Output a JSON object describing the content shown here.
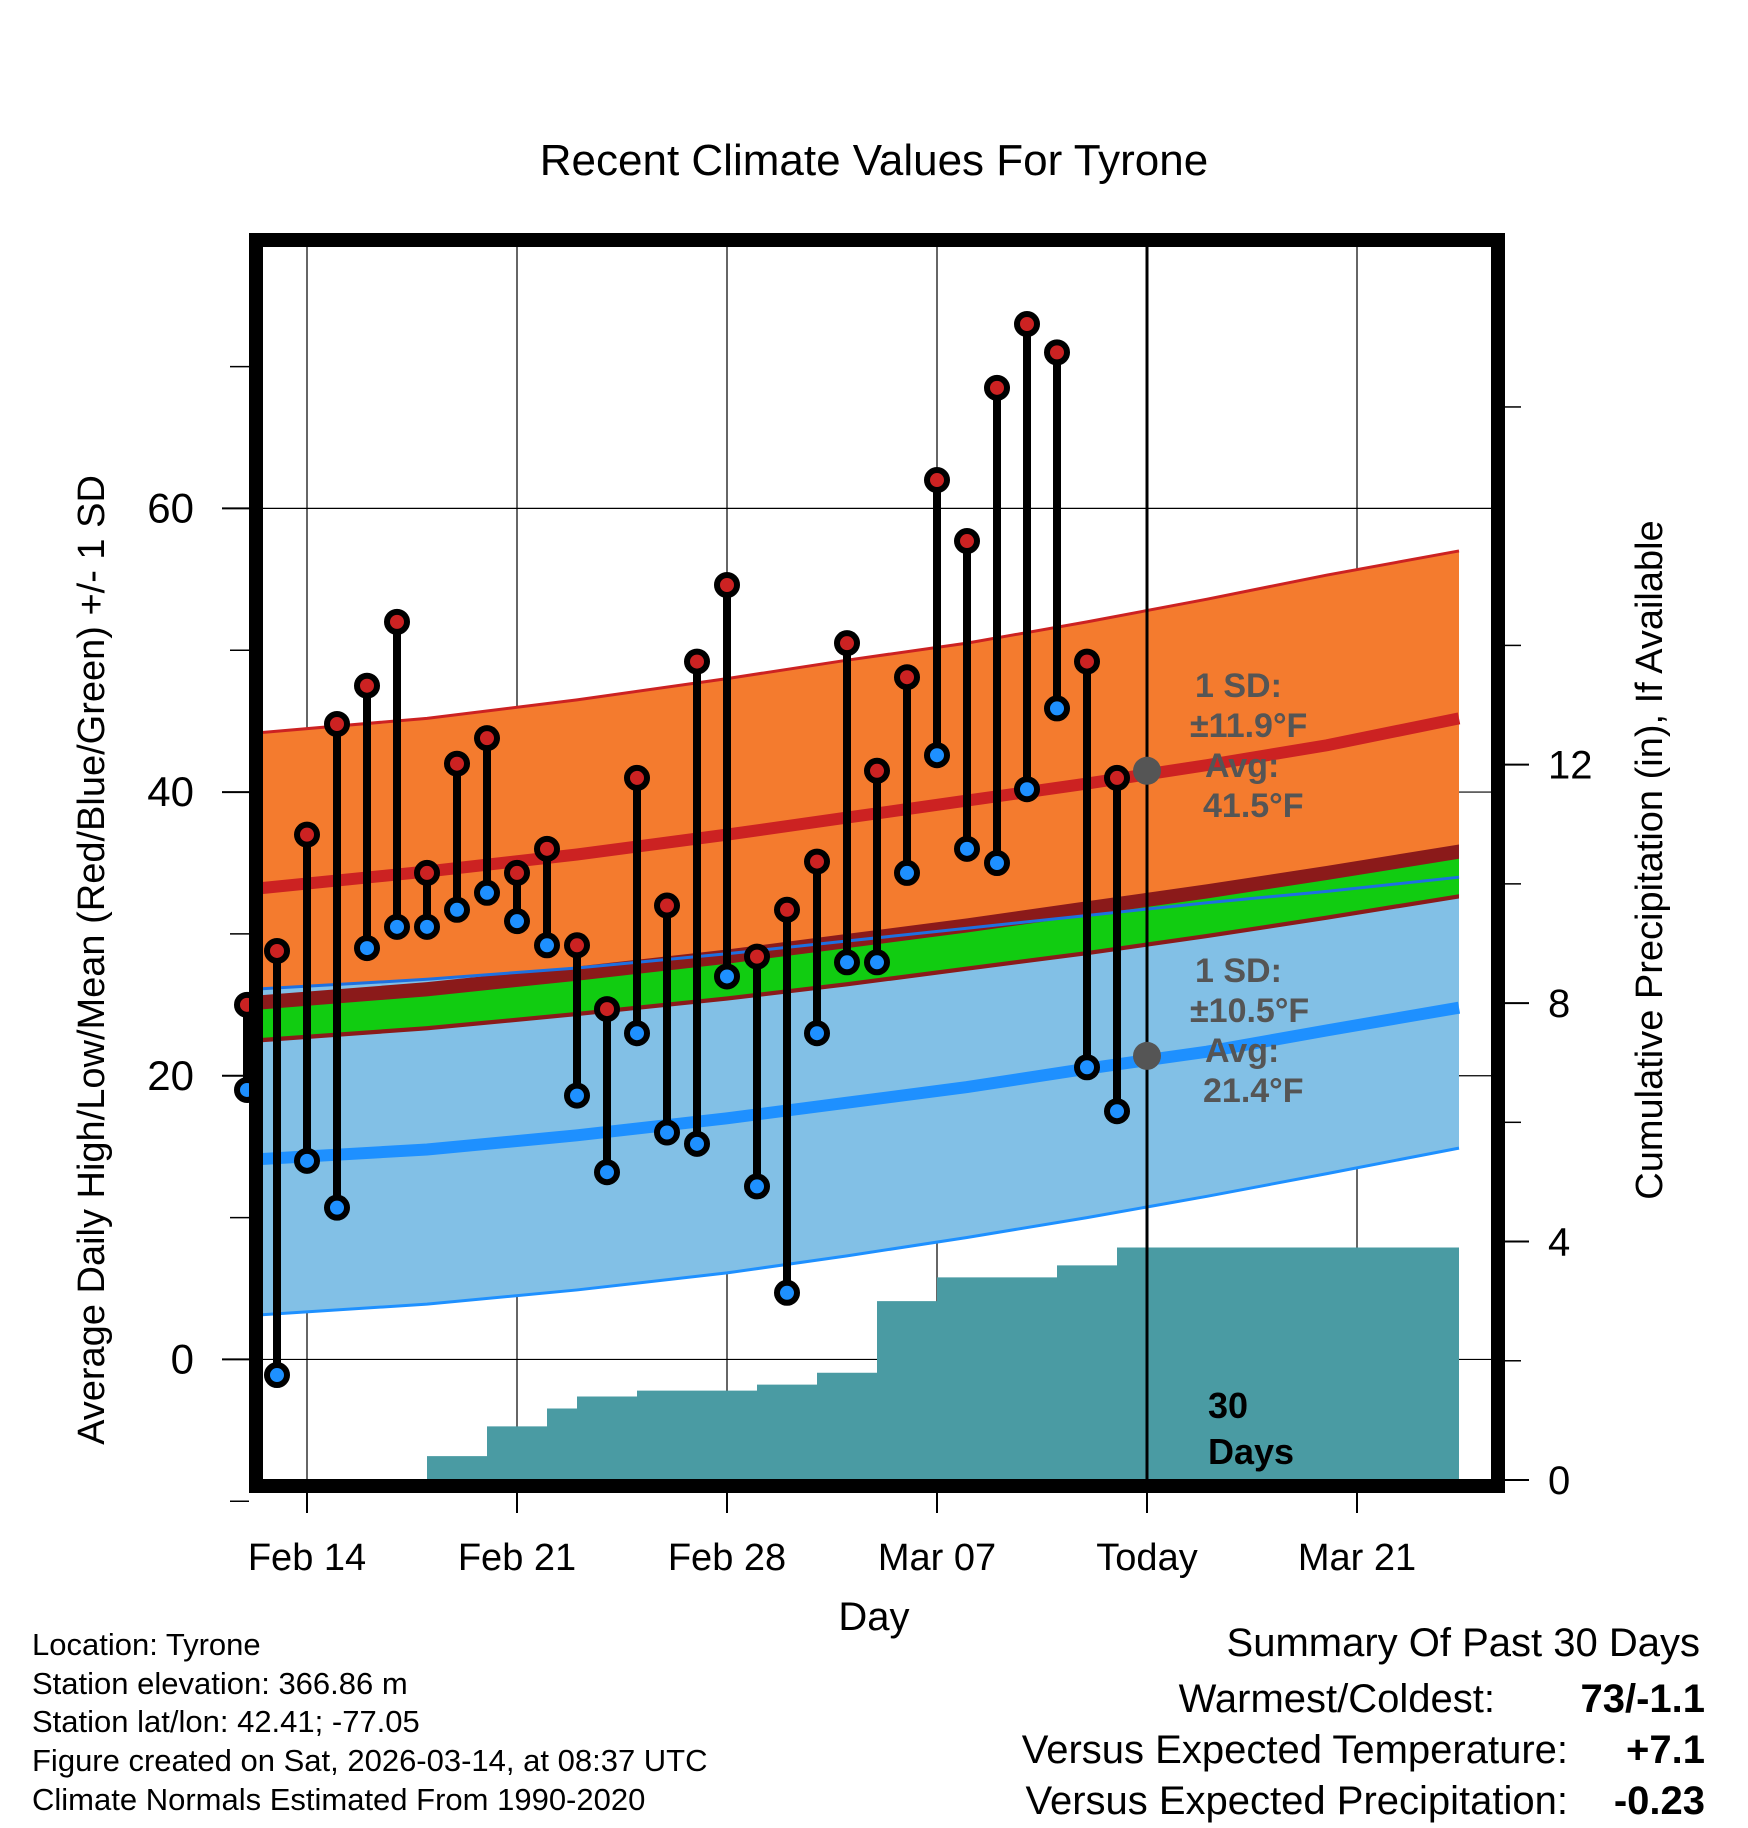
{
  "chart_data": {
    "type": "line",
    "title": "Recent Climate Values For Tyrone",
    "xlabel": "Day",
    "ylabel": "Average Daily High/Low/Mean (Red/Blue/Green) +/- 1 SD",
    "y2label": "Cumulative Precipitation (in), If Available",
    "ylim": [
      -8.5,
      78.5
    ],
    "y2lim": [
      0,
      20.7
    ],
    "xlim": [
      -1.5,
      39.5
    ],
    "y_ticks": [
      0,
      20,
      40,
      60
    ],
    "y2_ticks": [
      0,
      4,
      8,
      12
    ],
    "x_ticks": [
      {
        "day": 0,
        "label": "Feb 14"
      },
      {
        "day": 7,
        "label": "Feb 21"
      },
      {
        "day": 14,
        "label": "Feb 28"
      },
      {
        "day": 21,
        "label": "Mar 07"
      },
      {
        "day": 28,
        "label": "Today"
      },
      {
        "day": 35,
        "label": "Mar 21"
      }
    ],
    "today_day": 28,
    "today_marker_label": "30 Days",
    "normals": {
      "days": [
        -2.6,
        4,
        9,
        14,
        18,
        22,
        26,
        30,
        34,
        38.4
      ],
      "high_mean": [
        33.0,
        34.4,
        35.6,
        37.0,
        38.2,
        39.4,
        40.6,
        41.9,
        43.3,
        45.2
      ],
      "high_upper": [
        44.0,
        45.2,
        46.5,
        48.0,
        49.3,
        50.5,
        52.0,
        53.6,
        55.3,
        57.0
      ],
      "high_lower": [
        26.0,
        26.8,
        27.6,
        28.6,
        29.5,
        30.4,
        31.3,
        32.2,
        33.0,
        34.0
      ],
      "low_mean": [
        14.0,
        14.8,
        15.8,
        17.0,
        18.1,
        19.2,
        20.5,
        21.7,
        23.2,
        24.8
      ],
      "low_upper": [
        26.0,
        26.8,
        27.6,
        28.6,
        29.5,
        30.4,
        31.3,
        32.2,
        33.0,
        34.0
      ],
      "low_lower": [
        3.0,
        3.9,
        4.9,
        6.1,
        7.3,
        8.6,
        10.0,
        11.5,
        13.1,
        14.9
      ],
      "mean_upper": [
        24.5,
        25.6,
        26.7,
        27.9,
        29.0,
        30.1,
        31.3,
        32.5,
        33.8,
        35.3
      ],
      "mean_lower": [
        22.5,
        23.5,
        24.5,
        25.6,
        26.6,
        27.7,
        28.8,
        30.0,
        31.3,
        32.8
      ]
    },
    "series": [
      {
        "name": "Daily High",
        "color": "#cc2222",
        "days": [
          -2,
          -1,
          0,
          1,
          2,
          3,
          4,
          5,
          6,
          7,
          8,
          9,
          10,
          11,
          12,
          13,
          14,
          15,
          16,
          17,
          18,
          19,
          20,
          21,
          22,
          23,
          24,
          25,
          26,
          27
        ],
        "values": [
          25,
          28.8,
          37,
          44.8,
          47.5,
          52,
          34.3,
          42,
          43.8,
          34.3,
          36,
          29.2,
          24.7,
          41,
          32,
          49.2,
          54.6,
          28.4,
          31.7,
          35.1,
          50.5,
          41.5,
          48.1,
          62,
          57.7,
          68.5,
          73,
          71,
          49.2,
          41
        ]
      },
      {
        "name": "Daily Low",
        "color": "#1e90ff",
        "days": [
          -2,
          -1,
          0,
          1,
          2,
          3,
          4,
          5,
          6,
          7,
          8,
          9,
          10,
          11,
          12,
          13,
          14,
          15,
          16,
          17,
          18,
          19,
          20,
          21,
          22,
          23,
          24,
          25,
          26,
          27
        ],
        "values": [
          19,
          -1.1,
          14,
          10.7,
          29,
          30.5,
          30.5,
          31.7,
          32.9,
          30.9,
          29.2,
          18.6,
          13.2,
          23,
          16,
          15.2,
          27,
          12.2,
          4.7,
          23,
          28,
          28,
          34.3,
          42.6,
          36,
          35,
          40.2,
          45.9,
          20.6,
          17.5
        ]
      }
    ],
    "precip": {
      "days": [
        -2,
        -1,
        0,
        1,
        2,
        3,
        4,
        5,
        6,
        7,
        8,
        9,
        10,
        11,
        12,
        13,
        14,
        15,
        16,
        17,
        18,
        19,
        20,
        21,
        22,
        23,
        24,
        25,
        26,
        27,
        28,
        38.4
      ],
      "values": [
        0,
        0,
        0,
        0,
        0,
        0,
        0.4,
        0.4,
        0.9,
        0.9,
        1.2,
        1.4,
        1.4,
        1.5,
        1.5,
        1.5,
        1.5,
        1.6,
        1.6,
        1.8,
        1.8,
        3.0,
        3.0,
        3.4,
        3.4,
        3.4,
        3.4,
        3.6,
        3.6,
        3.9,
        3.9,
        3.9
      ],
      "color": "#4a9ba3"
    },
    "annotations": [
      {
        "line1": "1 SD:",
        "line2": "±11.9°F",
        "line3": "Avg:",
        "line4": "41.5°F",
        "value": 41.5
      },
      {
        "line1": "1 SD:",
        "line2": "±10.5°F",
        "line3": "Avg:",
        "line4": "21.4°F",
        "value": 21.4
      }
    ]
  },
  "info": {
    "location": "Location: Tyrone",
    "elevation": "Station elevation: 366.86 m",
    "latlon": "Station lat/lon: 42.41; -77.05",
    "created": "Figure created on Sat, 2026-03-14, at 08:37 UTC",
    "normals": "Climate Normals Estimated From 1990-2020"
  },
  "summary": {
    "heading": "Summary Of Past 30 Days",
    "warmest_label": "Warmest/Coldest:",
    "warmest_value": "73/-1.1",
    "temp_label": "Versus Expected Temperature:",
    "temp_value": "+7.1",
    "temp_color": "#cc2222",
    "precip_label": "Versus Expected Precipitation:",
    "precip_value": "-0.23",
    "precip_color": "#a0522d"
  }
}
